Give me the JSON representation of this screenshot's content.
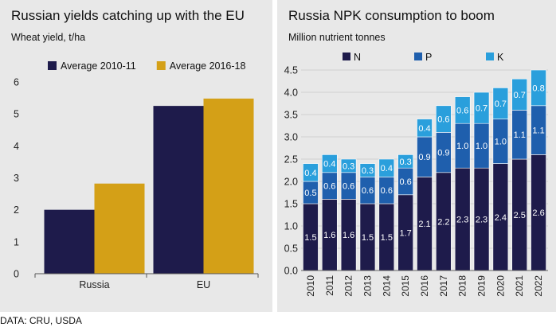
{
  "source_note": "DATA: CRU, USDA",
  "chart_data": [
    {
      "type": "bar",
      "title": "Russian yields catching up with the EU",
      "subtitle": "Wheat yield, t/ha",
      "categories": [
        "Russia",
        "EU"
      ],
      "series": [
        {
          "name": "Average 2010-11",
          "values": [
            2.0,
            5.25
          ],
          "color": "#1e1b4b"
        },
        {
          "name": "Average 2016-18",
          "values": [
            2.82,
            5.48
          ],
          "color": "#d4a017"
        }
      ],
      "ylim": [
        0,
        6
      ],
      "yticks": [
        "0",
        "1",
        "2",
        "3",
        "4",
        "5",
        "6"
      ],
      "grid": false,
      "legend_position": "top"
    },
    {
      "type": "bar",
      "stacked": true,
      "title": "Russia NPK consumption to boom",
      "subtitle": "Million nutrient tonnes",
      "categories": [
        "2010",
        "2011",
        "2012",
        "2013",
        "2014",
        "2015",
        "2016",
        "2017",
        "2018",
        "2019",
        "2020",
        "2021",
        "2022"
      ],
      "series": [
        {
          "name": "N",
          "color": "#1e1b4b",
          "values": [
            1.5,
            1.6,
            1.6,
            1.5,
            1.5,
            1.7,
            2.1,
            2.2,
            2.3,
            2.3,
            2.4,
            2.5,
            2.6
          ],
          "labels": [
            "1.5",
            "1.6",
            "1.6",
            "1.5",
            "1.5",
            "1.7",
            "2.1",
            "2.2",
            "2.3",
            "2.3",
            "2.4",
            "2.5",
            "2.6"
          ]
        },
        {
          "name": "P",
          "color": "#1f5fad",
          "values": [
            0.5,
            0.6,
            0.6,
            0.6,
            0.6,
            0.6,
            0.9,
            0.9,
            1.0,
            1.0,
            1.0,
            1.1,
            1.1
          ],
          "labels": [
            "0.5",
            "0.6",
            "0.6",
            "0.6",
            "0.6",
            "0.6",
            "0.9",
            "0.9",
            "1.0",
            "1.0",
            "1.0",
            "1.1",
            "1.1"
          ]
        },
        {
          "name": "K",
          "color": "#2a9fdc",
          "values": [
            0.4,
            0.4,
            0.3,
            0.3,
            0.4,
            0.3,
            0.4,
            0.6,
            0.6,
            0.7,
            0.7,
            0.7,
            0.8
          ],
          "labels": [
            "0.4",
            "0.4",
            "0.3",
            "0.3",
            "0.4",
            "0.3",
            "0.4",
            "0.6",
            "0.6",
            "0.7",
            "0.7",
            "0.7",
            "0.8"
          ]
        }
      ],
      "ylim": [
        0,
        4.5
      ],
      "yticks": [
        "0.0",
        "0.5",
        "1.0",
        "1.5",
        "2.0",
        "2.5",
        "3.0",
        "3.5",
        "4.0",
        "4.5"
      ],
      "grid": true,
      "legend_position": "top"
    }
  ]
}
